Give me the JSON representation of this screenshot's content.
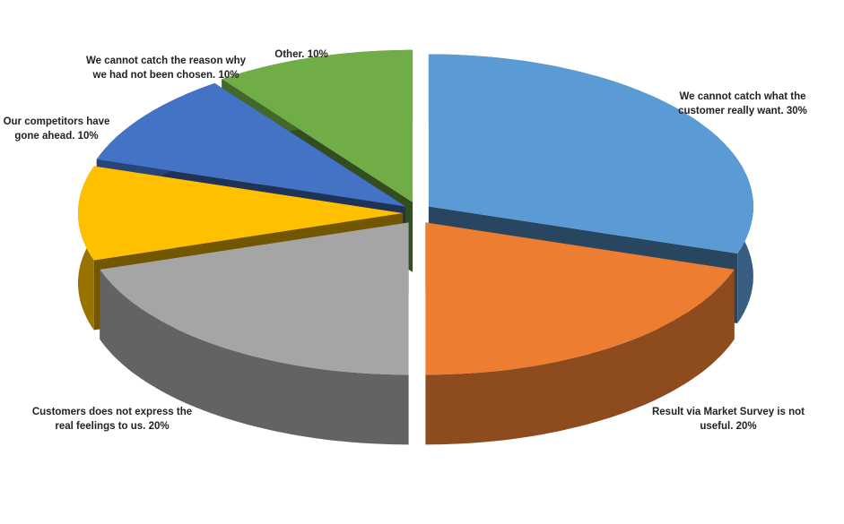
{
  "chart_data": {
    "type": "pie",
    "categories": [
      "We cannot catch what the customer really want.",
      "Result via Market Survey is not useful.",
      "Customers does not express the real feelings to us.",
      "Our competitors have gone ahead.",
      "We cannot catch the reason why we had not been chosen.",
      "Other."
    ],
    "values": [
      30,
      20,
      20,
      10,
      10,
      10
    ],
    "value_labels": [
      "30%",
      "20%",
      "20%",
      "10%",
      "10%",
      "10%"
    ],
    "colors": [
      "#5b9bd5",
      "#ed7d31",
      "#a5a5a5",
      "#ffc000",
      "#4472c4",
      "#70ad47"
    ]
  }
}
